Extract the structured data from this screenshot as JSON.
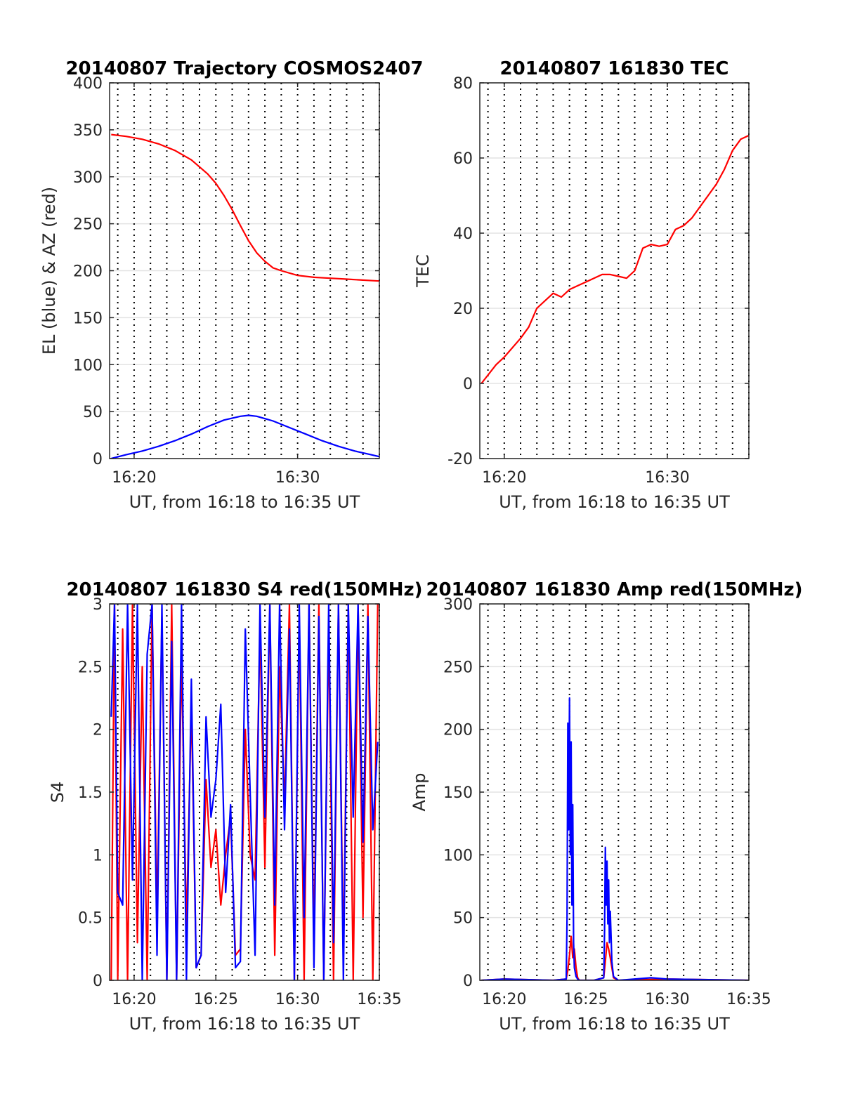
{
  "chart_data": [
    {
      "type": "line",
      "title": "20140807 Trajectory COSMOS2407",
      "xlabel": "UT, from 16:18 to 16:35 UT",
      "ylabel": "EL (blue) & AZ (red)",
      "x_unit": "minutes after 16:00 UT",
      "xlim": [
        18.5,
        35
      ],
      "ylim": [
        0,
        400
      ],
      "yticks": [
        0,
        50,
        100,
        150,
        200,
        250,
        300,
        350,
        400
      ],
      "xticks": [
        20,
        30
      ],
      "xticklabels": [
        "16:20",
        "16:30"
      ],
      "minor_xgrid_step": 1,
      "grid": true,
      "series": [
        {
          "color": "#ff0000",
          "x": [
            18.6,
            19.5,
            20.5,
            21.5,
            22.5,
            23.5,
            24.5,
            25.0,
            25.5,
            26.0,
            26.5,
            27.0,
            27.5,
            28.0,
            28.5,
            29.0,
            30.0,
            31.0,
            32.0,
            33.0,
            34.0,
            35.0
          ],
          "y": [
            345,
            343,
            340,
            335,
            328,
            318,
            303,
            293,
            280,
            265,
            248,
            232,
            219,
            210,
            203,
            200,
            195,
            193,
            192,
            191,
            190,
            189
          ]
        },
        {
          "color": "#0000ff",
          "x": [
            18.6,
            19.5,
            20.5,
            21.5,
            22.5,
            23.5,
            24.5,
            25.5,
            26.5,
            27.0,
            27.5,
            28.5,
            29.5,
            30.5,
            31.5,
            32.5,
            33.5,
            34.5,
            35.0
          ],
          "y": [
            0,
            4,
            8,
            13,
            19,
            26,
            34,
            41,
            45,
            46,
            45,
            40,
            33,
            26,
            19,
            13,
            8,
            4,
            2
          ]
        }
      ]
    },
    {
      "type": "line",
      "title": "20140807 161830 TEC",
      "xlabel": "UT, from 16:18 to 16:35 UT",
      "ylabel": "TEC",
      "x_unit": "minutes after 16:00 UT",
      "xlim": [
        18.5,
        35
      ],
      "ylim": [
        -20,
        80
      ],
      "yticks": [
        -20,
        0,
        20,
        40,
        60,
        80
      ],
      "xticks": [
        20,
        30
      ],
      "xticklabels": [
        "16:20",
        "16:30"
      ],
      "minor_xgrid_step": 1,
      "grid": true,
      "series": [
        {
          "color": "#ff0000",
          "x": [
            18.6,
            19.5,
            20.0,
            21.0,
            21.5,
            22.0,
            22.5,
            23.0,
            23.5,
            24.0,
            24.5,
            25.0,
            25.5,
            26.0,
            26.5,
            27.0,
            27.5,
            28.0,
            28.5,
            29.0,
            29.5,
            30.0,
            30.5,
            31.0,
            31.5,
            32.0,
            32.5,
            33.0,
            33.5,
            34.0,
            34.5,
            35.0
          ],
          "y": [
            0,
            5,
            7,
            12,
            15,
            20,
            22,
            24,
            23,
            25,
            26,
            27,
            28,
            29,
            29,
            28.5,
            28,
            30,
            36,
            37,
            36.5,
            37,
            41,
            42,
            44,
            47,
            50,
            53,
            57,
            62,
            65,
            66
          ]
        }
      ]
    },
    {
      "type": "line",
      "title": "20140807 161830 S4 red(150MHz)",
      "xlabel": "UT, from 16:18 to 16:35 UT",
      "ylabel": "S4",
      "x_unit": "minutes after 16:00 UT",
      "xlim": [
        18.5,
        35
      ],
      "ylim": [
        0,
        3
      ],
      "yticks": [
        0,
        0.5,
        1,
        1.5,
        2,
        2.5,
        3
      ],
      "xticks": [
        20,
        25,
        30,
        35
      ],
      "xticklabels": [
        "16:20",
        "16:25",
        "16:30",
        "16:35"
      ],
      "minor_xgrid_step": 1,
      "grid": true,
      "series": [
        {
          "color": "#ff0000",
          "x": [
            18.6,
            18.8,
            19.0,
            19.3,
            19.6,
            19.9,
            20.2,
            20.5,
            20.8,
            21.1,
            21.4,
            21.7,
            22.0,
            22.3,
            22.6,
            22.9,
            23.2,
            23.5,
            23.8,
            24.1,
            24.4,
            24.7,
            25.0,
            25.3,
            25.6,
            25.9,
            26.2,
            26.5,
            26.8,
            27.1,
            27.4,
            27.7,
            28.0,
            28.3,
            28.6,
            28.9,
            29.2,
            29.5,
            29.8,
            30.1,
            30.4,
            30.7,
            31.0,
            31.3,
            31.6,
            31.9,
            32.2,
            32.5,
            32.8,
            33.1,
            33.4,
            33.7,
            34.0,
            34.3,
            34.6,
            34.9
          ],
          "y": [
            0,
            3,
            0,
            2.8,
            0,
            3,
            0.3,
            2.5,
            0,
            3,
            0.5,
            2.9,
            0,
            3,
            0,
            2.6,
            0.4,
            2.2,
            0.1,
            0.2,
            1.6,
            0.9,
            1.2,
            0.6,
            1.0,
            1.3,
            0.2,
            0.25,
            2.0,
            1.0,
            0.8,
            2.8,
            0.9,
            3,
            0.2,
            2.5,
            1.4,
            3,
            0,
            2.9,
            0,
            3,
            0.3,
            3,
            0,
            2.8,
            0,
            3,
            0.2,
            3,
            0,
            3,
            0.5,
            3,
            0,
            3
          ]
        },
        {
          "color": "#0000ff",
          "x": [
            18.6,
            18.8,
            19.0,
            19.3,
            19.6,
            19.9,
            20.2,
            20.5,
            20.8,
            21.1,
            21.4,
            21.7,
            22.0,
            22.3,
            22.6,
            22.9,
            23.2,
            23.5,
            23.8,
            24.1,
            24.4,
            24.7,
            25.0,
            25.3,
            25.6,
            25.9,
            26.2,
            26.5,
            26.8,
            27.1,
            27.4,
            27.7,
            28.0,
            28.3,
            28.6,
            28.9,
            29.2,
            29.5,
            29.8,
            30.1,
            30.4,
            30.7,
            31.0,
            31.3,
            31.6,
            31.9,
            32.2,
            32.5,
            32.8,
            33.1,
            33.4,
            33.7,
            34.0,
            34.3,
            34.6,
            34.9
          ],
          "y": [
            2.1,
            3,
            0.7,
            0.6,
            3,
            0.8,
            3,
            0,
            2.6,
            3,
            0.2,
            3,
            0,
            2.7,
            0,
            3,
            0,
            2.4,
            0.1,
            0.2,
            2.1,
            1.3,
            1.6,
            2.2,
            0.7,
            1.4,
            0.1,
            0.15,
            2.8,
            1.5,
            0.2,
            3,
            1.3,
            3,
            0.6,
            3,
            1.2,
            2.8,
            0,
            3,
            0.5,
            3,
            0.1,
            2.9,
            0,
            3,
            0.3,
            3,
            0,
            3,
            1.3,
            3,
            1.1,
            2.9,
            1.2,
            1.9
          ]
        }
      ]
    },
    {
      "type": "line",
      "title": "20140807 161830 Amp red(150MHz)",
      "xlabel": "UT, from 16:18 to 16:35 UT",
      "ylabel": "Amp",
      "x_unit": "minutes after 16:00 UT",
      "xlim": [
        18.5,
        35
      ],
      "ylim": [
        0,
        300
      ],
      "yticks": [
        0,
        50,
        100,
        150,
        200,
        250,
        300
      ],
      "xticks": [
        20,
        25,
        30,
        35
      ],
      "xticklabels": [
        "16:20",
        "16:25",
        "16:30",
        "16:35"
      ],
      "minor_xgrid_step": 1,
      "grid": true,
      "series": [
        {
          "color": "#ff0000",
          "x": [
            18.6,
            20.0,
            23.0,
            23.8,
            23.9,
            24.0,
            24.1,
            24.2,
            24.3,
            24.4,
            24.5,
            24.6,
            25.5,
            26.1,
            26.2,
            26.3,
            26.4,
            26.5,
            26.6,
            26.7,
            27.0,
            30.0,
            35.0
          ],
          "y": [
            0,
            1,
            0,
            1,
            8,
            20,
            35,
            18,
            25,
            10,
            2,
            0,
            0,
            2,
            15,
            30,
            25,
            18,
            10,
            2,
            0,
            1,
            0
          ]
        },
        {
          "color": "#0000ff",
          "x": [
            18.6,
            20.0,
            23.0,
            23.8,
            23.85,
            23.9,
            23.95,
            24.0,
            24.05,
            24.1,
            24.15,
            24.2,
            24.25,
            24.3,
            24.4,
            24.5,
            24.6,
            25.5,
            26.1,
            26.15,
            26.2,
            26.25,
            26.3,
            26.35,
            26.4,
            26.45,
            26.5,
            26.6,
            26.7,
            27.0,
            29.0,
            30.0,
            35.0
          ],
          "y": [
            0,
            1,
            0,
            1,
            50,
            205,
            120,
            225,
            100,
            190,
            60,
            140,
            30,
            10,
            3,
            1,
            0,
            0,
            2,
            40,
            106,
            60,
            95,
            45,
            80,
            30,
            55,
            15,
            3,
            0,
            2,
            1,
            0
          ]
        }
      ]
    }
  ]
}
